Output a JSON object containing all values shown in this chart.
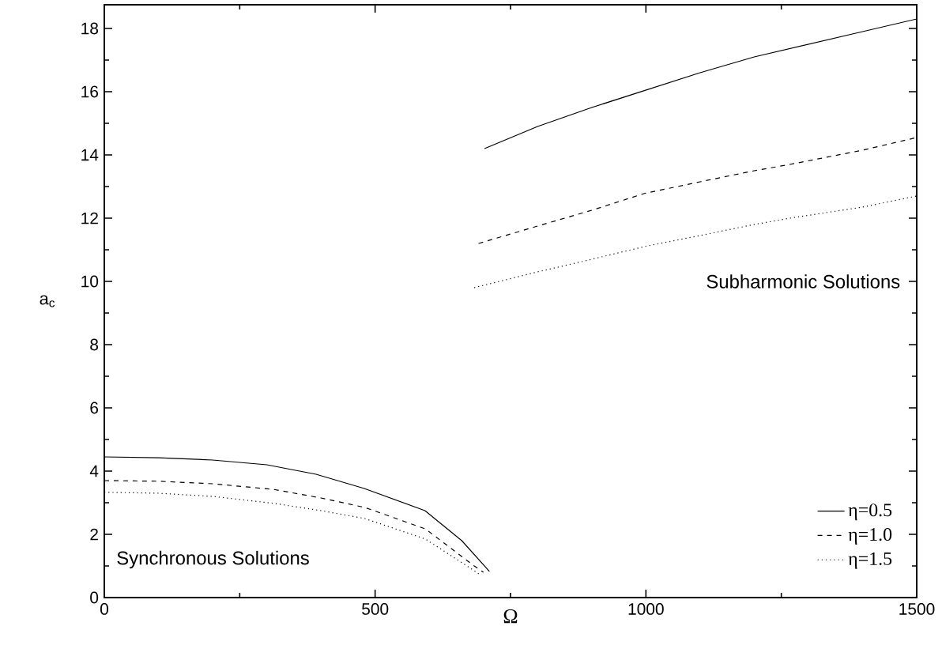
{
  "chart_data": {
    "type": "line",
    "xlabel": "Ω",
    "ylabel": "a$_{c}$",
    "xlim": [
      0,
      1500
    ],
    "ylim": [
      0,
      18.75
    ],
    "xticks": [
      0,
      500,
      1000,
      1500
    ],
    "yticks": [
      0,
      2,
      4,
      6,
      8,
      10,
      12,
      14,
      16,
      18
    ],
    "legend": "bottom right",
    "grid": false,
    "marker": "none",
    "annotations": [
      "Subharmonic Solutions",
      "Synchronous Solutions"
    ],
    "series": [
      {
        "name": "η=0.5",
        "color": "#000000",
        "line_style": "solid",
        "x": [
          0,
          100,
          200,
          300,
          391,
          480,
          592,
          660,
          711,
          null,
          702,
          800,
          900,
          1000,
          1100,
          1200,
          1300,
          1400,
          1500
        ],
        "values": [
          4.45,
          4.42,
          4.35,
          4.2,
          3.9,
          3.45,
          2.75,
          1.8,
          0.83,
          null,
          14.2,
          14.9,
          15.5,
          16.05,
          16.6,
          17.1,
          17.5,
          17.9,
          18.3
        ]
      },
      {
        "name": "η=1.0",
        "color": "#000000",
        "line_style": "dashed",
        "x": [
          0,
          100,
          200,
          313,
          400,
          481,
          593,
          683,
          700,
          null,
          691,
          800,
          900,
          997,
          1100,
          1200,
          1266,
          1400,
          1500
        ],
        "values": [
          3.7,
          3.68,
          3.6,
          3.42,
          3.15,
          2.85,
          2.17,
          1.0,
          0.8,
          null,
          11.2,
          11.75,
          12.25,
          12.78,
          13.15,
          13.5,
          13.7,
          14.15,
          14.55
        ]
      },
      {
        "name": "η=1.5",
        "color": "#000000",
        "line_style": "dotted",
        "x": [
          0,
          100,
          200,
          313,
          400,
          481,
          593,
          683,
          695,
          null,
          683,
          800,
          900,
          997,
          1100,
          1200,
          1266,
          1400,
          1500
        ],
        "values": [
          3.33,
          3.3,
          3.2,
          2.98,
          2.75,
          2.5,
          1.85,
          0.85,
          0.7,
          null,
          9.8,
          10.3,
          10.7,
          11.1,
          11.45,
          11.8,
          12.0,
          12.35,
          12.7
        ]
      }
    ]
  }
}
